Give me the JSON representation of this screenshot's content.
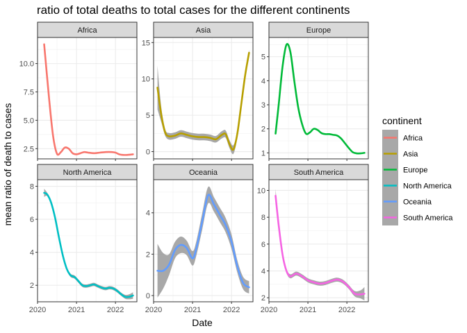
{
  "chart_data": {
    "type": "line",
    "title": "ratio of total deaths to total cases for the different continents",
    "xlabel": "Date",
    "ylabel": "mean ratio of death to cases",
    "x_ticks": [
      "2020",
      "2021",
      "2022"
    ],
    "x_range": [
      2020.0,
      2022.55
    ],
    "grid": true,
    "legend": {
      "title": "continent",
      "placement": "right"
    },
    "panels": [
      {
        "name": "Africa",
        "color": "#F8766D",
        "y_range": [
          1.6,
          12.3
        ],
        "y_ticks": [
          2.5,
          5.0,
          7.5,
          10.0
        ],
        "y_tick_labels": [
          "2.5",
          "5.0",
          "7.5",
          "10.0"
        ],
        "x": [
          2020.17,
          2020.3,
          2020.4,
          2020.5,
          2020.6,
          2020.7,
          2020.8,
          2020.9,
          2021.0,
          2021.1,
          2021.2,
          2021.3,
          2021.45,
          2021.6,
          2021.75,
          2021.9,
          2022.0,
          2022.1,
          2022.2,
          2022.3,
          2022.45
        ],
        "y": [
          11.7,
          6.8,
          3.6,
          2.05,
          2.2,
          2.6,
          2.5,
          2.1,
          2.0,
          2.1,
          2.2,
          2.15,
          2.1,
          2.15,
          2.2,
          2.2,
          2.15,
          2.0,
          1.95,
          1.95,
          2.0
        ],
        "band": []
      },
      {
        "name": "Asia",
        "color": "#B79F00",
        "y_range": [
          -1.0,
          15.7
        ],
        "y_ticks": [
          0,
          5,
          10,
          15
        ],
        "y_tick_labels": [
          "0",
          "5",
          "10",
          "15"
        ],
        "x": [
          2020.1,
          2020.2,
          2020.3,
          2020.4,
          2020.55,
          2020.7,
          2020.85,
          2021.0,
          2021.15,
          2021.3,
          2021.45,
          2021.6,
          2021.75,
          2021.85,
          2021.95,
          2022.05,
          2022.15,
          2022.25,
          2022.35,
          2022.45
        ],
        "y": [
          8.8,
          5.0,
          2.6,
          2.1,
          2.2,
          2.5,
          2.3,
          2.1,
          2.0,
          2.0,
          1.9,
          1.7,
          2.3,
          2.4,
          1.0,
          0.3,
          2.5,
          6.5,
          10.5,
          13.6
        ],
        "band": [
          3.0,
          1.0,
          0.45,
          0.45,
          0.45,
          0.45,
          0.45,
          0.45,
          0.45,
          0.45,
          0.45,
          0.45,
          0.5,
          0.5,
          0.55,
          0.6,
          0.5,
          0.4,
          0.3,
          0.4
        ]
      },
      {
        "name": "Europe",
        "color": "#00BA38",
        "y_range": [
          0.75,
          5.8
        ],
        "y_ticks": [
          1,
          2,
          3,
          4,
          5
        ],
        "y_tick_labels": [
          "1",
          "2",
          "3",
          "4",
          "5"
        ],
        "x": [
          2020.17,
          2020.25,
          2020.35,
          2020.45,
          2020.55,
          2020.65,
          2020.75,
          2020.85,
          2020.95,
          2021.05,
          2021.15,
          2021.25,
          2021.35,
          2021.45,
          2021.55,
          2021.65,
          2021.75,
          2021.85,
          2021.95,
          2022.05,
          2022.15,
          2022.25,
          2022.35,
          2022.45
        ],
        "y": [
          1.8,
          3.0,
          4.6,
          5.5,
          5.2,
          4.0,
          2.9,
          2.2,
          1.8,
          1.85,
          2.0,
          1.95,
          1.82,
          1.78,
          1.78,
          1.75,
          1.72,
          1.6,
          1.4,
          1.2,
          1.03,
          0.98,
          0.98,
          1.0
        ],
        "band": []
      },
      {
        "name": "North America",
        "color": "#00BFC4",
        "y_range": [
          1.0,
          8.4
        ],
        "y_ticks": [
          2,
          4,
          6,
          8
        ],
        "y_tick_labels": [
          "2",
          "4",
          "6",
          "8"
        ],
        "x": [
          2020.17,
          2020.25,
          2020.35,
          2020.45,
          2020.55,
          2020.65,
          2020.75,
          2020.85,
          2020.95,
          2021.05,
          2021.15,
          2021.25,
          2021.35,
          2021.45,
          2021.55,
          2021.65,
          2021.75,
          2021.85,
          2021.95,
          2022.05,
          2022.15,
          2022.25,
          2022.35,
          2022.45
        ],
        "y": [
          7.6,
          7.5,
          7.0,
          6.1,
          4.9,
          3.8,
          3.0,
          2.6,
          2.5,
          2.25,
          2.0,
          1.95,
          2.0,
          2.05,
          1.95,
          1.85,
          1.8,
          1.85,
          1.8,
          1.65,
          1.45,
          1.3,
          1.3,
          1.38
        ],
        "band": [
          0.25,
          0.1,
          0.1,
          0.1,
          0.1,
          0.1,
          0.1,
          0.1,
          0.1,
          0.1,
          0.1,
          0.1,
          0.1,
          0.1,
          0.1,
          0.1,
          0.1,
          0.1,
          0.1,
          0.1,
          0.1,
          0.12,
          0.15,
          0.2
        ]
      },
      {
        "name": "Oceania",
        "color": "#619CFF",
        "y_range": [
          -0.3,
          5.6
        ],
        "y_ticks": [
          0,
          2,
          4
        ],
        "y_tick_labels": [
          "0",
          "2",
          "4"
        ],
        "x": [
          2020.1,
          2020.25,
          2020.4,
          2020.55,
          2020.7,
          2020.85,
          2021.0,
          2021.1,
          2021.25,
          2021.4,
          2021.55,
          2021.7,
          2021.85,
          2022.0,
          2022.15,
          2022.3,
          2022.45
        ],
        "y": [
          1.2,
          1.2,
          1.5,
          2.2,
          2.45,
          2.3,
          1.8,
          2.3,
          3.6,
          4.85,
          4.4,
          3.9,
          3.4,
          2.6,
          1.4,
          0.6,
          0.4
        ],
        "band": [
          1.3,
          0.85,
          0.5,
          0.4,
          0.4,
          0.35,
          0.35,
          0.35,
          0.4,
          0.4,
          0.35,
          0.35,
          0.35,
          0.35,
          0.3,
          0.3,
          0.3
        ]
      },
      {
        "name": "South America",
        "color": "#F564E3",
        "y_range": [
          1.7,
          10.8
        ],
        "y_ticks": [
          2,
          4,
          6,
          8,
          10
        ],
        "y_tick_labels": [
          "2",
          "4",
          "6",
          "8",
          "10"
        ],
        "x": [
          2020.17,
          2020.25,
          2020.35,
          2020.45,
          2020.55,
          2020.7,
          2020.85,
          2021.0,
          2021.15,
          2021.3,
          2021.45,
          2021.6,
          2021.75,
          2021.9,
          2022.05,
          2022.2,
          2022.35,
          2022.45
        ],
        "y": [
          9.6,
          7.4,
          5.2,
          4.0,
          3.6,
          3.8,
          3.6,
          3.3,
          3.15,
          3.05,
          3.1,
          3.25,
          3.35,
          3.2,
          2.8,
          2.3,
          2.25,
          2.3
        ],
        "band": [
          0.5,
          0.3,
          0.15,
          0.15,
          0.15,
          0.15,
          0.15,
          0.15,
          0.15,
          0.15,
          0.15,
          0.15,
          0.15,
          0.15,
          0.15,
          0.2,
          0.3,
          0.5
        ]
      }
    ]
  }
}
